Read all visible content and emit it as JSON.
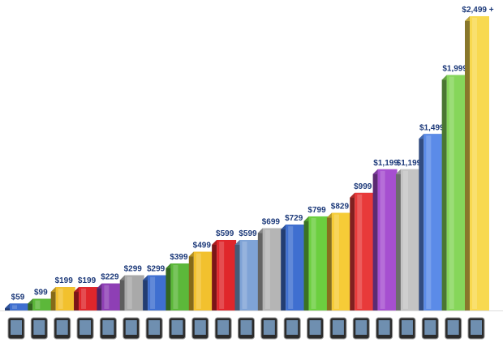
{
  "chart_data": {
    "type": "bar",
    "categories": [
      null,
      null,
      null,
      null,
      null,
      null,
      null,
      null,
      null,
      null,
      null,
      null,
      null,
      null,
      null,
      null,
      null,
      null,
      null,
      null,
      null
    ],
    "values": [
      59,
      99,
      199,
      199,
      229,
      299,
      299,
      399,
      499,
      599,
      599,
      699,
      729,
      799,
      829,
      999,
      1199,
      1199,
      1499,
      1999,
      2499
    ],
    "value_labels": [
      "$59",
      "$99",
      "$199",
      "$199",
      "$229",
      "$299",
      "$299",
      "$399",
      "$499",
      "$599",
      "$599",
      "$699",
      "$729",
      "$799",
      "$829",
      "$999",
      "$1,199",
      "$1,199",
      "$1,499",
      "$1,999",
      "$2,499 +"
    ],
    "colors": [
      "#3f6fd0",
      "#5cb83a",
      "#f2c12e",
      "#e0262b",
      "#8e3fb5",
      "#a9a9a9",
      "#3f6fd0",
      "#5cb83a",
      "#f2c12e",
      "#e0262b",
      "#7fa3d6",
      "#b5b5b5",
      "#3f6fd0",
      "#6ccf3f",
      "#f6cc37",
      "#e83a3a",
      "#a64fd0",
      "#c4c4c4",
      "#5b8be8",
      "#86d65a",
      "#f8d94f"
    ]
  }
}
